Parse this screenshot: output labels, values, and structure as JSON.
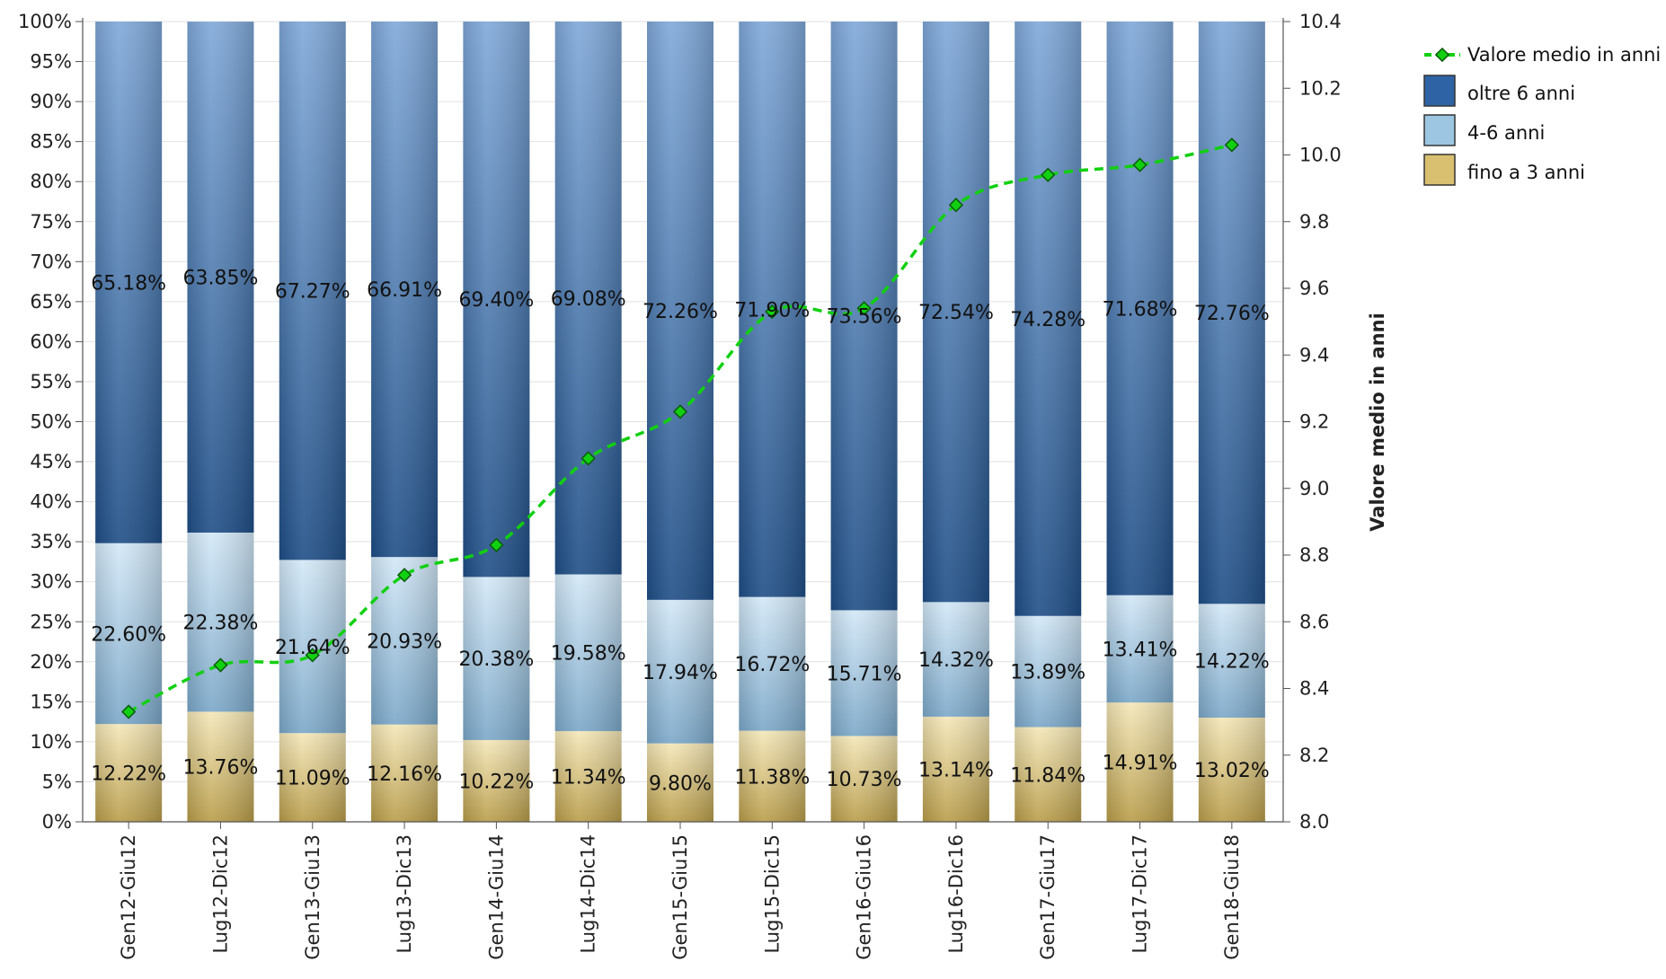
{
  "chart_data": {
    "type": "bar",
    "stacked": true,
    "categories": [
      "Gen12-Giu12",
      "Lug12-Dic12",
      "Gen13-Giu13",
      "Lug13-Dic13",
      "Gen14-Giu14",
      "Lug14-Dic14",
      "Gen15-Giu15",
      "Lug15-Dic15",
      "Gen16-Giu16",
      "Lug16-Dic16",
      "Gen17-Giu17",
      "Lug17-Dic17",
      "Gen18-Giu18"
    ],
    "series": [
      {
        "name": "fino a 3 anni",
        "color": "#d8c070",
        "values": [
          12.22,
          13.76,
          11.09,
          12.16,
          10.22,
          11.34,
          9.8,
          11.38,
          10.73,
          13.14,
          11.84,
          14.91,
          13.02
        ],
        "labels": [
          "12.22%",
          "13.76%",
          "11.09%",
          "12.16%",
          "10.22%",
          "11.34%",
          "9.80%",
          "11.38%",
          "10.73%",
          "13.14%",
          "11.84%",
          "14.91%",
          "13.02%"
        ]
      },
      {
        "name": "4-6 anni",
        "color": "#9cc6e2",
        "values": [
          22.6,
          22.38,
          21.64,
          20.93,
          20.38,
          19.58,
          17.94,
          16.72,
          15.71,
          14.32,
          13.89,
          13.41,
          14.22
        ],
        "labels": [
          "22.60%",
          "22.38%",
          "21.64%",
          "20.93%",
          "20.38%",
          "19.58%",
          "17.94%",
          "16.72%",
          "15.71%",
          "14.32%",
          "13.89%",
          "13.41%",
          "14.22%"
        ]
      },
      {
        "name": "oltre 6 anni",
        "color": "#2e64a6",
        "values": [
          65.18,
          63.85,
          67.27,
          66.91,
          69.4,
          69.08,
          72.26,
          71.9,
          73.56,
          72.54,
          74.28,
          71.68,
          72.76
        ],
        "labels": [
          "65.18%",
          "63.85%",
          "67.27%",
          "66.91%",
          "69.40%",
          "69.08%",
          "72.26%",
          "71.90%",
          "73.56%",
          "72.54%",
          "74.28%",
          "71.68%",
          "72.76%"
        ]
      }
    ],
    "line_series": {
      "name": "Valore medio in anni",
      "color": "#11d011",
      "axis": "right",
      "values": [
        8.33,
        8.47,
        8.5,
        8.74,
        8.83,
        9.09,
        9.23,
        9.53,
        9.54,
        9.85,
        9.94,
        9.97,
        10.03
      ]
    },
    "y_left": {
      "min": 0,
      "max": 100,
      "ticks": [
        "0%",
        "5%",
        "10%",
        "15%",
        "20%",
        "25%",
        "30%",
        "35%",
        "40%",
        "45%",
        "50%",
        "55%",
        "60%",
        "65%",
        "70%",
        "75%",
        "80%",
        "85%",
        "90%",
        "95%",
        "100%"
      ]
    },
    "y_right": {
      "min": 8.0,
      "max": 10.4,
      "label": "Valore medio in anni",
      "ticks": [
        "8.0",
        "8.2",
        "8.4",
        "8.6",
        "8.8",
        "9.0",
        "9.2",
        "9.4",
        "9.6",
        "9.8",
        "10.0",
        "10.2",
        "10.4"
      ]
    },
    "grid": true,
    "legend_position": "top-right",
    "legend": [
      "Valore medio in anni",
      "oltre 6 anni",
      "4-6 anni",
      "fino a 3 anni"
    ]
  }
}
